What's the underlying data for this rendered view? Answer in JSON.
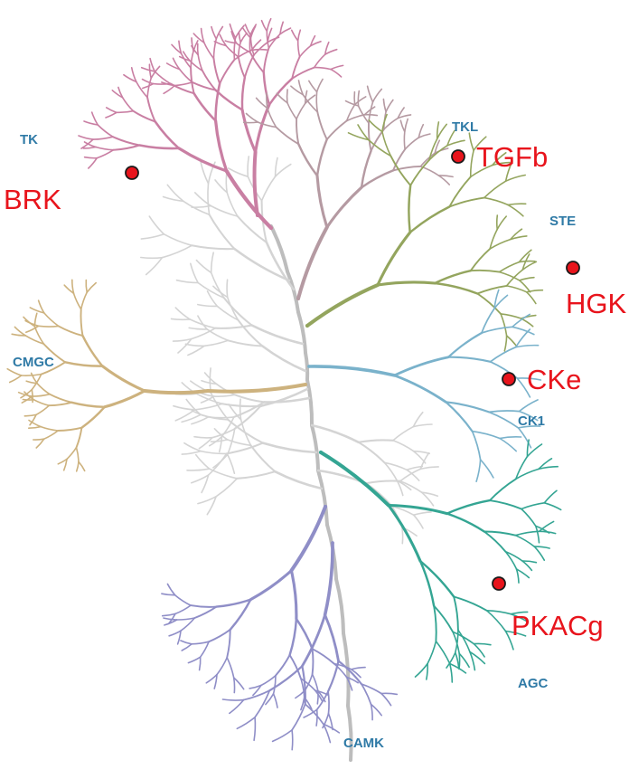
{
  "colors": {
    "group_label": "#2f7aa6",
    "kinase_label": "#e8141c",
    "marker": "#e8141c",
    "trunk": "#bdbdbd",
    "TK": "#c97fa3",
    "TKL": "#b59aa2",
    "STE": "#94a55e",
    "CK1": "#7ab2cb",
    "AGC": "#34a593",
    "CAMK": "#8f8ec7",
    "CMGC": "#cdb27e",
    "other": "#d4d4d4"
  },
  "groups": [
    {
      "id": "TK",
      "label": "TK"
    },
    {
      "id": "TKL",
      "label": "TKL"
    },
    {
      "id": "STE",
      "label": "STE"
    },
    {
      "id": "CK1",
      "label": "CK1"
    },
    {
      "id": "AGC",
      "label": "AGC"
    },
    {
      "id": "CAMK",
      "label": "CAMK"
    },
    {
      "id": "CMGC",
      "label": "CMGC"
    }
  ],
  "kinases": [
    {
      "label": "BRK",
      "group": "TK"
    },
    {
      "label": "TGFb",
      "group": "TKL"
    },
    {
      "label": "HGK",
      "group": "STE"
    },
    {
      "label": "CKe",
      "group": "CK1"
    },
    {
      "label": "PKACg",
      "group": "AGC"
    }
  ]
}
